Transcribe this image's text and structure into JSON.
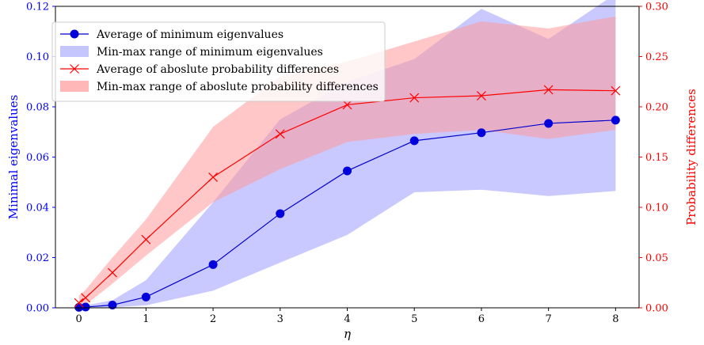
{
  "chart_data": {
    "type": "line",
    "title": "",
    "xlabel": "η",
    "ylabel_left": "Minimal eigenvalues",
    "ylabel_right": "Probability differences",
    "xlim": [
      -0.35,
      8.35
    ],
    "ylim_left": [
      0,
      0.12
    ],
    "ylim_right": [
      0,
      0.3
    ],
    "x_ticks": [
      0,
      1,
      2,
      3,
      4,
      5,
      6,
      7,
      8
    ],
    "y_ticks_left": [
      0.0,
      0.02,
      0.04,
      0.06,
      0.08,
      0.1,
      0.12
    ],
    "y_tick_labels_left": [
      "0.00",
      "0.02",
      "0.04",
      "0.06",
      "0.08",
      "0.10",
      "0.12"
    ],
    "y_ticks_right": [
      0.0,
      0.05,
      0.1,
      0.15,
      0.2,
      0.25,
      0.3
    ],
    "y_tick_labels_right": [
      "0.00",
      "0.05",
      "0.10",
      "0.15",
      "0.20",
      "0.25",
      "0.30"
    ],
    "grid": false,
    "legend_position": "top-left",
    "colors": {
      "blue_line": "#0000cc",
      "blue_marker": "#0000dd",
      "blue_fill": "#c6c6ff",
      "red_line": "#ff0000",
      "red_fill": "#ff9999",
      "left_axis": "#0000ff",
      "right_axis": "#ff0000"
    },
    "series": [
      {
        "name": "Average of minimum eigenvalues",
        "axis": "left",
        "marker": "circle",
        "x": [
          0,
          0.1,
          0.5,
          1,
          2,
          3,
          4,
          5,
          6,
          7,
          8
        ],
        "values": [
          0.0002,
          0.0003,
          0.0011,
          0.0043,
          0.0172,
          0.0375,
          0.0545,
          0.0665,
          0.0697,
          0.0734,
          0.0747
        ]
      },
      {
        "name": "Min-max range of minimum eigenvalues",
        "axis": "left",
        "kind": "band",
        "x": [
          0,
          0.1,
          0.5,
          1,
          2,
          3,
          4,
          5,
          6,
          7,
          8
        ],
        "lower": [
          0.0,
          0.0,
          0.0002,
          0.001,
          0.0068,
          0.018,
          0.029,
          0.046,
          0.047,
          0.0445,
          0.0465
        ],
        "upper": [
          0.0008,
          0.001,
          0.003,
          0.011,
          0.042,
          0.075,
          0.09,
          0.099,
          0.119,
          0.107,
          0.125
        ]
      },
      {
        "name": "Average of aboslute probability differences",
        "axis": "right",
        "marker": "x",
        "x": [
          0,
          0.1,
          0.5,
          1,
          2,
          3,
          4,
          5,
          6,
          7,
          8
        ],
        "values": [
          0.005,
          0.01,
          0.035,
          0.068,
          0.13,
          0.173,
          0.202,
          0.209,
          0.211,
          0.217,
          0.216
        ]
      },
      {
        "name": "Min-max range of aboslute probability differences",
        "axis": "right",
        "kind": "band",
        "x": [
          0,
          0.1,
          0.5,
          1,
          2,
          3,
          4,
          5,
          6,
          7,
          8
        ],
        "lower": [
          0.0,
          0.003,
          0.024,
          0.052,
          0.105,
          0.138,
          0.165,
          0.173,
          0.177,
          0.168,
          0.177
        ],
        "upper": [
          0.012,
          0.018,
          0.05,
          0.088,
          0.18,
          0.23,
          0.245,
          0.265,
          0.285,
          0.278,
          0.29
        ]
      }
    ]
  }
}
